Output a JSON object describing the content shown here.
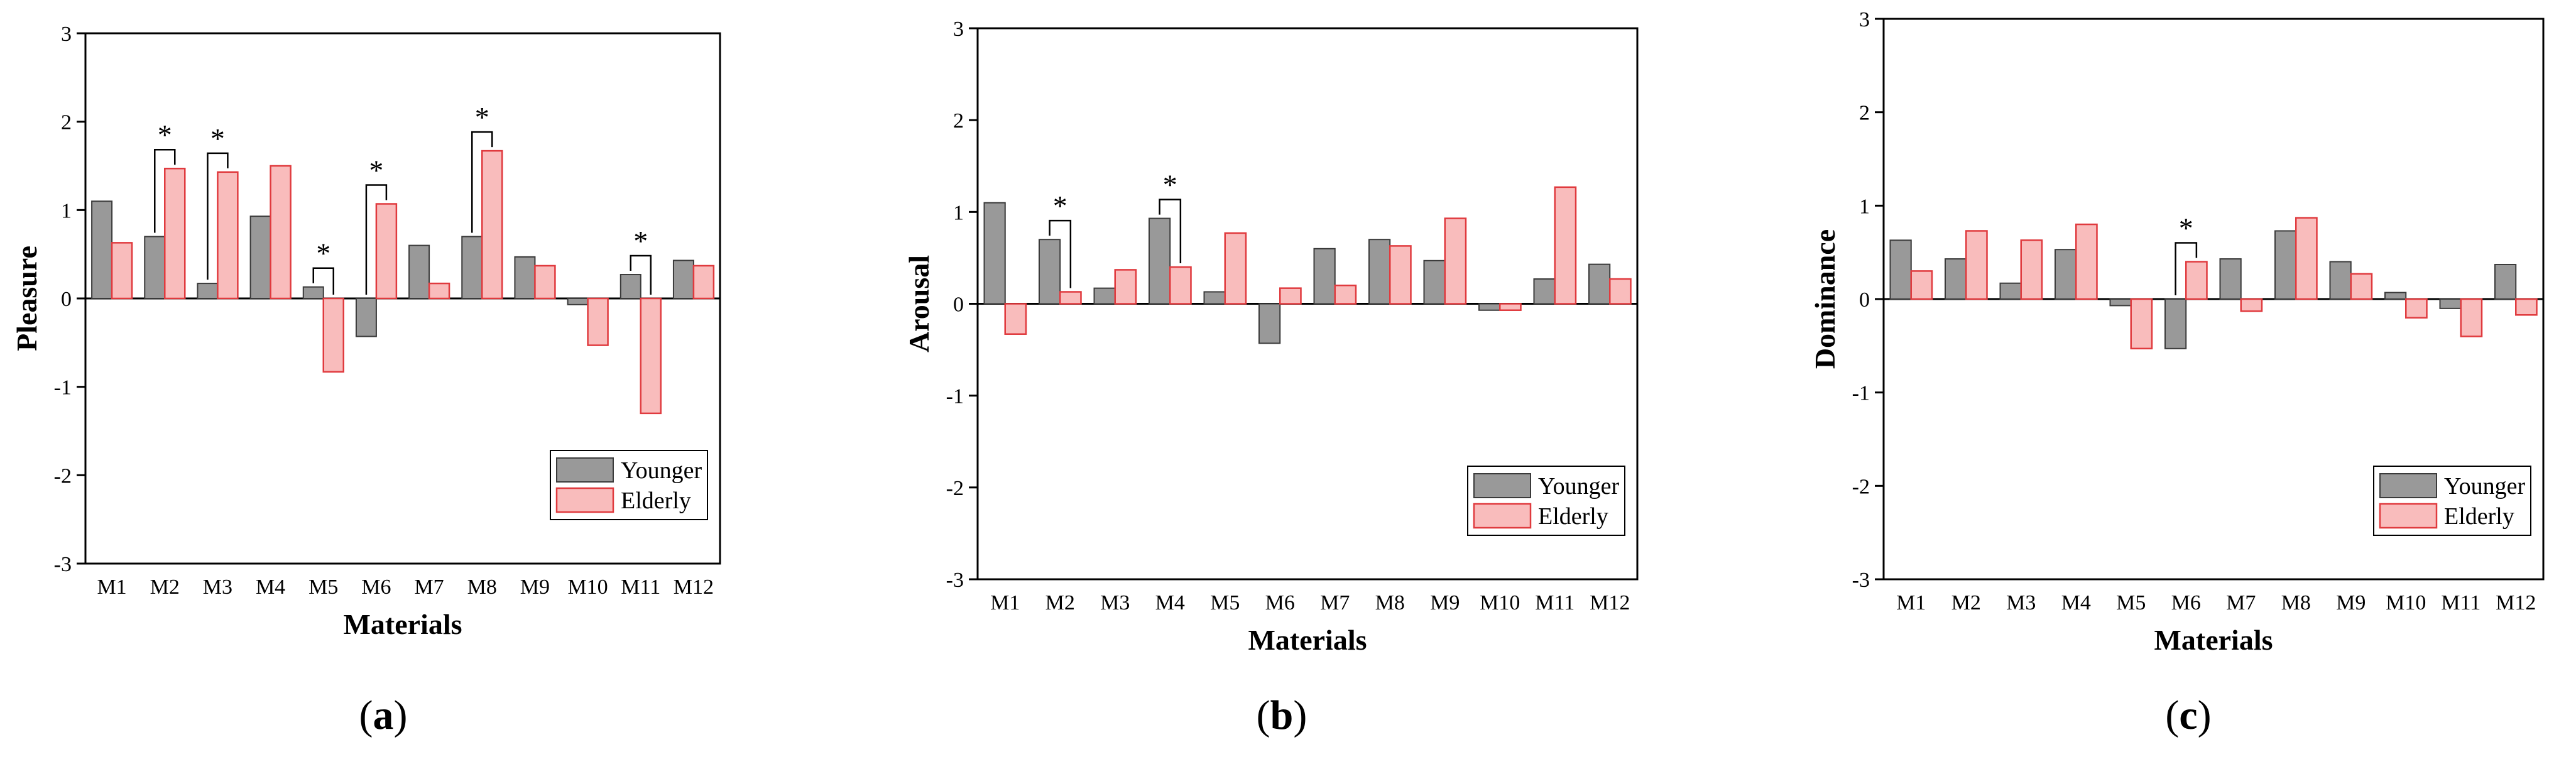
{
  "colors": {
    "younger_fill": "#999999",
    "younger_stroke": "#3a3a3a",
    "elderly_fill": "#f9bcbc",
    "elderly_stroke": "#e03a3e",
    "axis": "#000000"
  },
  "chart_data": [
    {
      "id": "a",
      "type": "bar",
      "caption": "a",
      "xlabel": "Materials",
      "ylabel": "Pleasure",
      "ylim": [
        -3,
        3
      ],
      "yticks": [
        "-3",
        "-2",
        "-1",
        "0",
        "1",
        "2",
        "3"
      ],
      "legend_position": "bottom-right",
      "categories": [
        "M1",
        "M2",
        "M3",
        "M4",
        "M5",
        "M6",
        "M7",
        "M8",
        "M9",
        "M10",
        "M11",
        "M12"
      ],
      "series": [
        {
          "name": "Younger",
          "values": [
            1.1,
            0.7,
            0.17,
            0.93,
            0.13,
            -0.43,
            0.6,
            0.7,
            0.47,
            -0.07,
            0.27,
            0.43
          ]
        },
        {
          "name": "Elderly",
          "values": [
            0.63,
            1.47,
            1.43,
            1.5,
            -0.83,
            1.07,
            0.17,
            1.67,
            0.37,
            -0.53,
            -1.3,
            0.37
          ]
        }
      ],
      "significance": [
        {
          "index": 1,
          "label": "*"
        },
        {
          "index": 2,
          "label": "*"
        },
        {
          "index": 4,
          "label": "*"
        },
        {
          "index": 5,
          "label": "*"
        },
        {
          "index": 7,
          "label": "*"
        },
        {
          "index": 10,
          "label": "*"
        }
      ]
    },
    {
      "id": "b",
      "type": "bar",
      "caption": "b",
      "xlabel": "Materials",
      "ylabel": "Arousal",
      "ylim": [
        -3,
        3
      ],
      "yticks": [
        "-3",
        "-2",
        "-1",
        "0",
        "1",
        "2",
        "3"
      ],
      "legend_position": "bottom-right",
      "categories": [
        "M1",
        "M2",
        "M3",
        "M4",
        "M5",
        "M6",
        "M7",
        "M8",
        "M9",
        "M10",
        "M11",
        "M12"
      ],
      "series": [
        {
          "name": "Younger",
          "values": [
            1.1,
            0.7,
            0.17,
            0.93,
            0.13,
            -0.43,
            0.6,
            0.7,
            0.47,
            -0.07,
            0.27,
            0.43
          ]
        },
        {
          "name": "Elderly",
          "values": [
            -0.33,
            0.13,
            0.37,
            0.4,
            0.77,
            0.17,
            0.2,
            0.63,
            0.93,
            -0.07,
            1.27,
            0.27
          ]
        }
      ],
      "significance": [
        {
          "index": 1,
          "label": "*"
        },
        {
          "index": 3,
          "label": "*"
        }
      ]
    },
    {
      "id": "c",
      "type": "bar",
      "caption": "c",
      "xlabel": "Materials",
      "ylabel": "Dominance",
      "ylim": [
        -3,
        3
      ],
      "yticks": [
        "-3",
        "-2",
        "-1",
        "0",
        "1",
        "2",
        "3"
      ],
      "legend_position": "bottom-right",
      "categories": [
        "M1",
        "M2",
        "M3",
        "M4",
        "M5",
        "M6",
        "M7",
        "M8",
        "M9",
        "M10",
        "M11",
        "M12"
      ],
      "series": [
        {
          "name": "Younger",
          "values": [
            0.63,
            0.43,
            0.17,
            0.53,
            -0.07,
            -0.53,
            0.43,
            0.73,
            0.4,
            0.07,
            -0.1,
            0.37
          ]
        },
        {
          "name": "Elderly",
          "values": [
            0.3,
            0.73,
            0.63,
            0.8,
            -0.53,
            0.4,
            -0.13,
            0.87,
            0.27,
            -0.2,
            -0.4,
            -0.17
          ]
        }
      ],
      "significance": [
        {
          "index": 5,
          "label": "*"
        }
      ]
    }
  ]
}
